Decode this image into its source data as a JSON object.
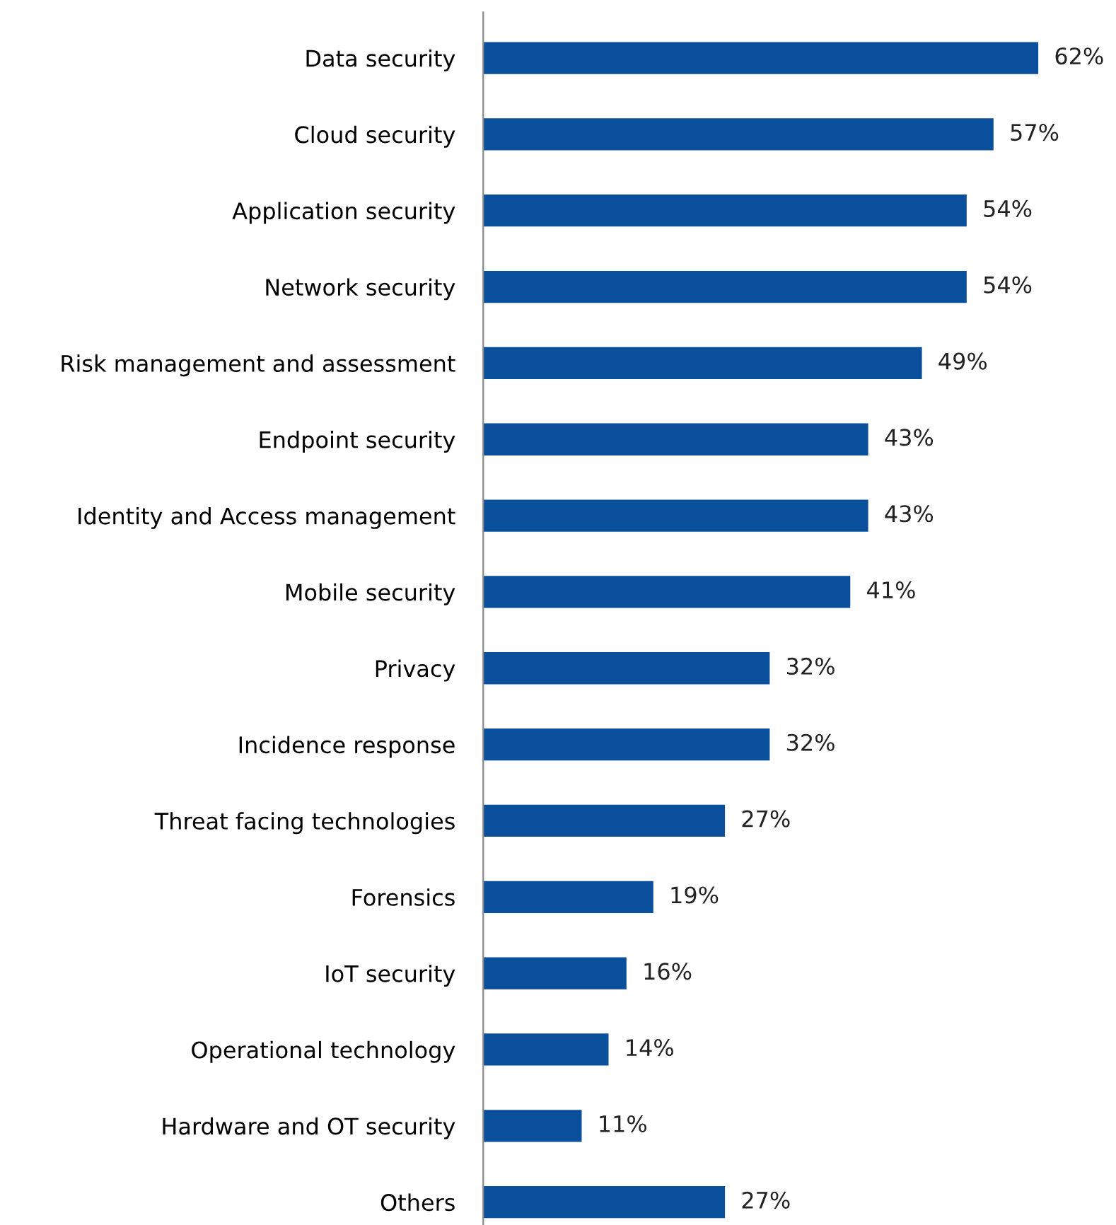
{
  "chart_data": {
    "type": "bar",
    "orientation": "horizontal",
    "color": "#0a4f9c",
    "categories": [
      "Data security",
      "Cloud security",
      "Application security",
      "Network security",
      "Risk management and assessment",
      "Endpoint security",
      "Identity and Access management",
      "Mobile security",
      "Privacy",
      "Incidence response",
      "Threat facing technologies",
      "Forensics",
      "IoT security",
      "Operational technology",
      "Hardware and OT security",
      "Others"
    ],
    "values": [
      62,
      57,
      54,
      54,
      49,
      43,
      43,
      41,
      32,
      32,
      27,
      19,
      16,
      14,
      11,
      27
    ],
    "value_labels": [
      "62%",
      "57%",
      "54%",
      "54%",
      "49%",
      "43%",
      "43%",
      "41%",
      "32%",
      "32%",
      "27%",
      "19%",
      "16%",
      "14%",
      "11%",
      "27%"
    ],
    "grid": false,
    "legend": false
  }
}
